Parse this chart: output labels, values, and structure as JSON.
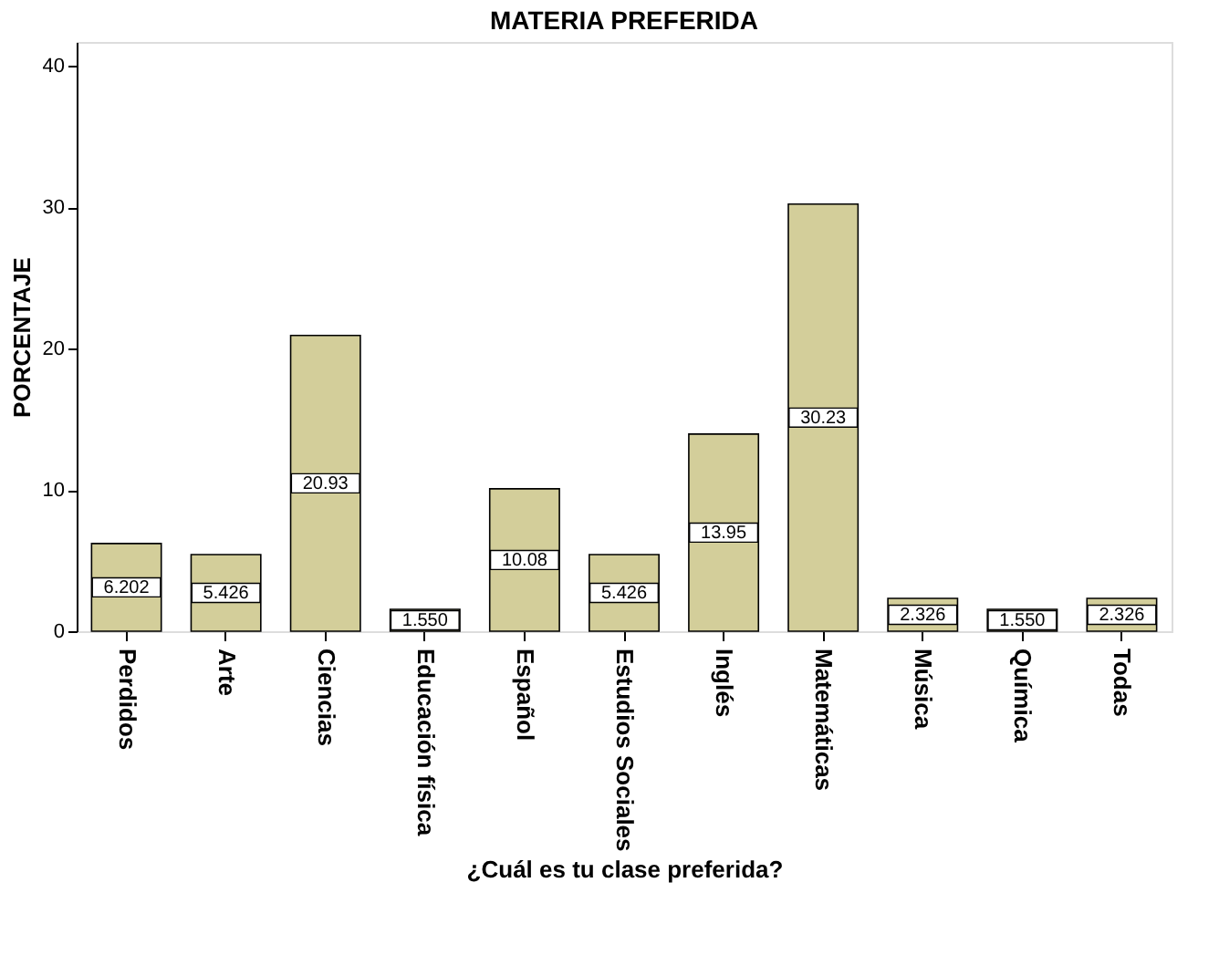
{
  "chart_data": {
    "type": "bar",
    "title": "MATERIA PREFERIDA",
    "xlabel": "¿Cuál es tu clase preferida?",
    "ylabel": "PORCENTAJE",
    "categories": [
      "Perdidos",
      "Arte",
      "Ciencias",
      "Educación física",
      "Español",
      "Estudios Sociales",
      "Inglés",
      "Matemáticas",
      "Música",
      "Química",
      "Todas"
    ],
    "values": [
      6.202,
      5.426,
      20.93,
      1.55,
      10.08,
      5.426,
      13.95,
      30.23,
      2.326,
      1.55,
      2.326
    ],
    "value_labels": [
      "6.202",
      "5.426",
      "20.93",
      "1.550",
      "10.08",
      "5.426",
      "13.95",
      "30.23",
      "2.326",
      "1.550",
      "2.326"
    ],
    "color": "#d3ce9a",
    "ylim": [
      0,
      41.7
    ],
    "yticks": [
      0,
      10,
      20,
      30,
      40
    ],
    "grid": false
  }
}
